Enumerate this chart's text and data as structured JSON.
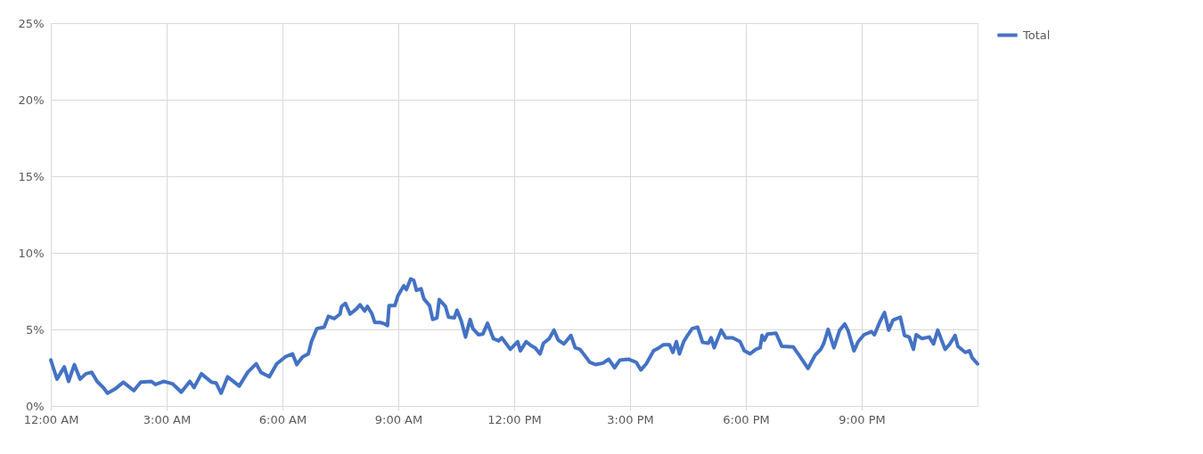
{
  "chart_data": {
    "type": "line",
    "xlim": [
      0,
      24
    ],
    "xticks": [
      {
        "value": 0,
        "label": "12:00 AM"
      },
      {
        "value": 3,
        "label": "3:00 AM"
      },
      {
        "value": 6,
        "label": "6:00 AM"
      },
      {
        "value": 9,
        "label": "9:00 AM"
      },
      {
        "value": 12,
        "label": "12:00 PM"
      },
      {
        "value": 15,
        "label": "3:00 PM"
      },
      {
        "value": 18,
        "label": "6:00 PM"
      },
      {
        "value": 21,
        "label": "9:00 PM"
      }
    ],
    "ylim": [
      0,
      25
    ],
    "yticks": [
      {
        "value": 0,
        "label": "0%"
      },
      {
        "value": 5,
        "label": "5%"
      },
      {
        "value": 10,
        "label": "10%"
      },
      {
        "value": 15,
        "label": "15%"
      },
      {
        "value": 20,
        "label": "20%"
      },
      {
        "value": 25,
        "label": "25%"
      }
    ],
    "grid": true,
    "legend": "right",
    "marker": "none",
    "line_style": "solid",
    "series": [
      {
        "name": "Total",
        "color": "#4472c4",
        "x": [
          0,
          0.16,
          0.35,
          0.46,
          0.61,
          0.76,
          0.91,
          1.06,
          1.2,
          1.36,
          1.47,
          1.66,
          1.88,
          2.15,
          2.33,
          2.6,
          2.71,
          2.93,
          3.15,
          3.38,
          3.6,
          3.71,
          3.9,
          4.16,
          4.28,
          4.41,
          4.58,
          4.88,
          5.1,
          5.32,
          5.44,
          5.66,
          5.85,
          6.07,
          6.26,
          6.37,
          6.52,
          6.67,
          6.75,
          6.89,
          7.08,
          7.19,
          7.34,
          7.49,
          7.53,
          7.63,
          7.75,
          7.9,
          8.01,
          8.13,
          8.2,
          8.32,
          8.39,
          8.54,
          8.65,
          8.72,
          8.76,
          8.91,
          8.99,
          9.14,
          9.21,
          9.32,
          9.4,
          9.47,
          9.59,
          9.66,
          9.81,
          9.89,
          10.0,
          10.06,
          10.22,
          10.3,
          10.45,
          10.52,
          10.63,
          10.74,
          10.86,
          10.93,
          11.08,
          11.19,
          11.31,
          11.46,
          11.6,
          11.68,
          11.9,
          12.09,
          12.16,
          12.31,
          12.43,
          12.54,
          12.67,
          12.76,
          12.91,
          13.03,
          13.14,
          13.29,
          13.47,
          13.58,
          13.7,
          13.81,
          13.96,
          14.11,
          14.3,
          14.45,
          14.6,
          14.74,
          14.97,
          15.16,
          15.28,
          15.42,
          15.61,
          15.75,
          15.87,
          16.02,
          16.11,
          16.2,
          16.28,
          16.39,
          16.5,
          16.61,
          16.75,
          16.88,
          17.03,
          17.1,
          17.18,
          17.36,
          17.48,
          17.66,
          17.85,
          17.96,
          18.11,
          18.26,
          18.37,
          18.42,
          18.48,
          18.56,
          18.78,
          18.93,
          19.23,
          19.38,
          19.61,
          19.79,
          19.94,
          20.02,
          20.13,
          20.28,
          20.43,
          20.56,
          20.65,
          20.8,
          20.91,
          21.06,
          21.25,
          21.33,
          21.47,
          21.59,
          21.7,
          21.81,
          22.0,
          22.11,
          22.23,
          22.34,
          22.41,
          22.56,
          22.75,
          22.86,
          22.97,
          23.16,
          23.27,
          23.42,
          23.49,
          23.68,
          23.79,
          23.86,
          24.0
        ],
        "values": [
          3.0,
          1.75,
          2.55,
          1.6,
          2.7,
          1.75,
          2.1,
          2.2,
          1.6,
          1.2,
          0.83,
          1.1,
          1.55,
          1.0,
          1.55,
          1.6,
          1.4,
          1.6,
          1.45,
          0.9,
          1.6,
          1.2,
          2.1,
          1.55,
          1.5,
          0.83,
          1.9,
          1.3,
          2.2,
          2.75,
          2.2,
          1.9,
          2.75,
          3.2,
          3.4,
          2.7,
          3.2,
          3.4,
          4.2,
          5.05,
          5.15,
          5.85,
          5.7,
          6.0,
          6.5,
          6.7,
          6.0,
          6.3,
          6.6,
          6.2,
          6.5,
          6.0,
          5.45,
          5.45,
          5.35,
          5.25,
          6.55,
          6.55,
          7.2,
          7.85,
          7.6,
          8.3,
          8.2,
          7.55,
          7.65,
          7.0,
          6.55,
          5.65,
          5.75,
          6.95,
          6.5,
          5.8,
          5.75,
          6.25,
          5.55,
          4.5,
          5.65,
          5.05,
          4.65,
          4.7,
          5.4,
          4.4,
          4.25,
          4.45,
          3.7,
          4.2,
          3.6,
          4.2,
          3.95,
          3.8,
          3.4,
          4.1,
          4.4,
          4.95,
          4.3,
          4.05,
          4.6,
          3.8,
          3.7,
          3.35,
          2.85,
          2.7,
          2.8,
          3.05,
          2.5,
          3.0,
          3.05,
          2.85,
          2.35,
          2.75,
          3.6,
          3.8,
          4.0,
          4.0,
          3.5,
          4.2,
          3.4,
          4.2,
          4.65,
          5.05,
          5.15,
          4.15,
          4.1,
          4.45,
          3.8,
          4.95,
          4.45,
          4.45,
          4.2,
          3.6,
          3.4,
          3.7,
          3.8,
          4.6,
          4.3,
          4.7,
          4.75,
          3.9,
          3.85,
          3.3,
          2.45,
          3.3,
          3.7,
          4.1,
          5.0,
          3.8,
          4.95,
          5.35,
          4.9,
          3.6,
          4.2,
          4.65,
          4.85,
          4.65,
          5.5,
          6.1,
          4.95,
          5.6,
          5.8,
          4.6,
          4.5,
          3.7,
          4.65,
          4.4,
          4.5,
          4.05,
          4.95,
          3.7,
          4.0,
          4.6,
          3.9,
          3.5,
          3.6,
          3.15,
          2.75
        ]
      }
    ]
  }
}
